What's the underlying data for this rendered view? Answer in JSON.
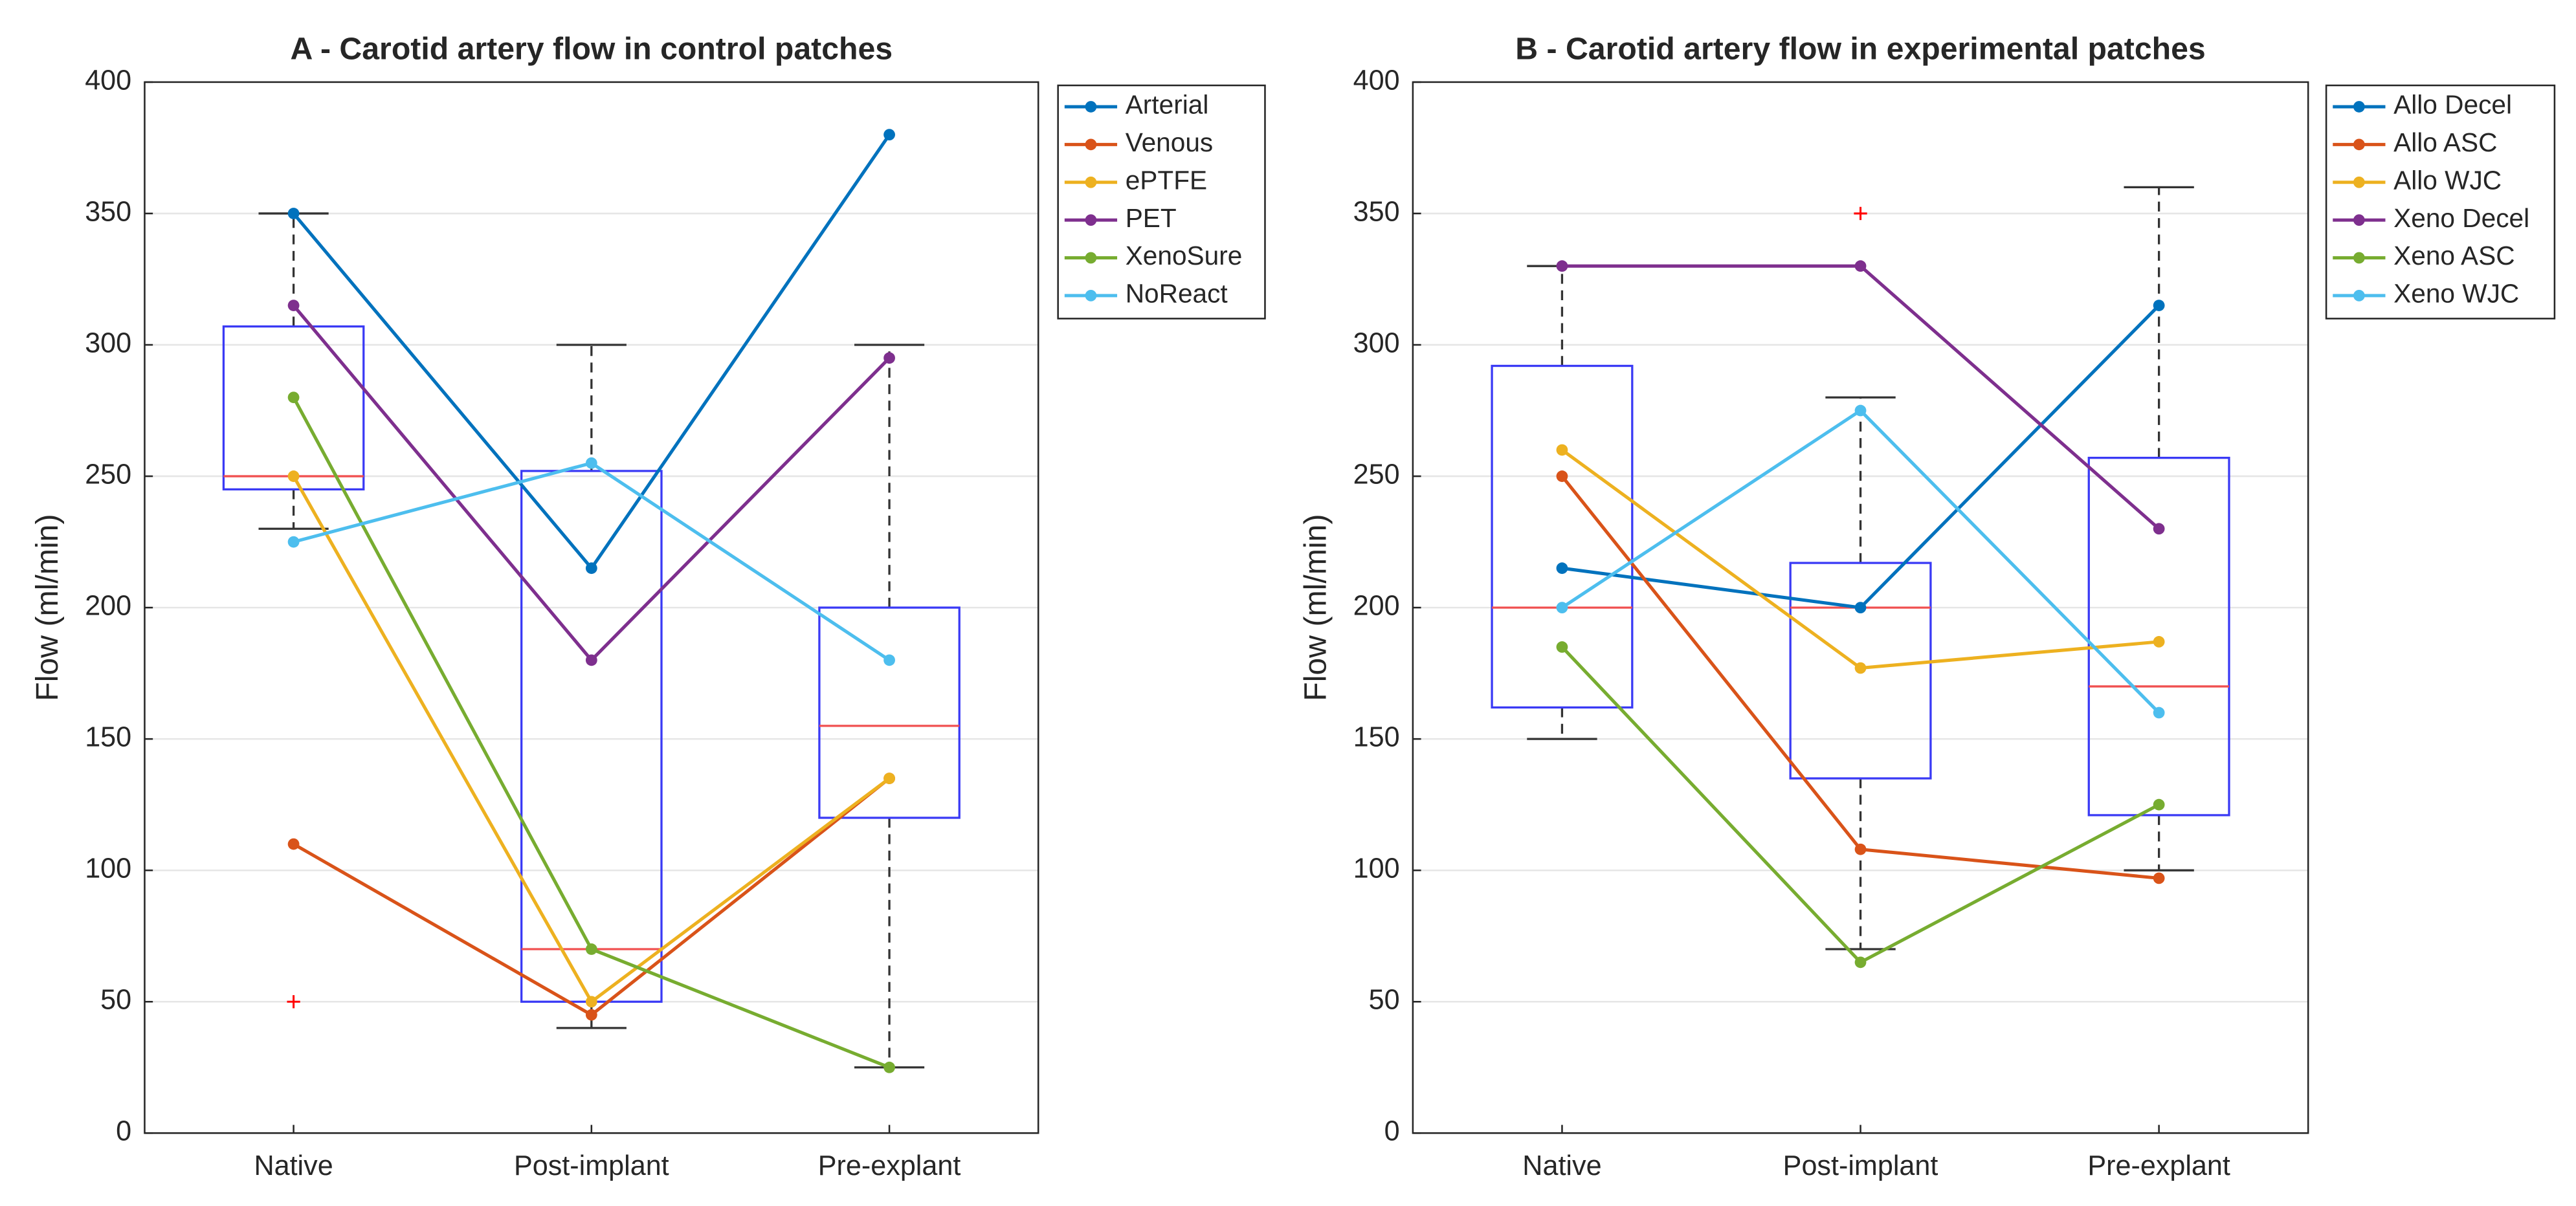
{
  "chart_data": [
    {
      "type": "box",
      "title": "A - Carotid artery flow in control patches",
      "y_label": "Flow (ml/min)",
      "categories": [
        "Native",
        "Post-implant",
        "Pre-explant"
      ],
      "ylim": [
        0,
        400
      ],
      "yticks": [
        0,
        50,
        100,
        150,
        200,
        250,
        300,
        350,
        400
      ],
      "grid": true,
      "legend": "outside right",
      "box_color": "#3a3af5",
      "median_color": "#f05050",
      "outlier_color": "#ff0000",
      "boxes": [
        {
          "whisker_low": 230,
          "q1": 245,
          "median": 250,
          "q3": 307,
          "whisker_high": 350,
          "outliers": [
            50
          ]
        },
        {
          "whisker_low": 40,
          "q1": 50,
          "median": 70,
          "q3": 252,
          "whisker_high": 300
        },
        {
          "whisker_low": 25,
          "q1": 120,
          "median": 155,
          "q3": 200,
          "whisker_high": 300
        }
      ],
      "series": [
        {
          "name": "Arterial",
          "color": "#0072BD",
          "values": [
            350,
            215,
            380
          ]
        },
        {
          "name": "Venous",
          "color": "#D95319",
          "values": [
            110,
            45,
            135
          ]
        },
        {
          "name": "ePTFE",
          "color": "#EDB120",
          "values": [
            250,
            50,
            135
          ]
        },
        {
          "name": "PET",
          "color": "#7E2F8E",
          "values": [
            315,
            180,
            295
          ]
        },
        {
          "name": "XenoSure",
          "color": "#77AC30",
          "values": [
            280,
            70,
            25
          ]
        },
        {
          "name": "NoReact",
          "color": "#4DBEEE",
          "values": [
            225,
            255,
            180
          ]
        }
      ]
    },
    {
      "type": "box",
      "title": "B - Carotid artery flow in experimental patches",
      "y_label": "Flow (ml/min)",
      "categories": [
        "Native",
        "Post-implant",
        "Pre-explant"
      ],
      "ylim": [
        0,
        400
      ],
      "yticks": [
        0,
        50,
        100,
        150,
        200,
        250,
        300,
        350,
        400
      ],
      "grid": true,
      "legend": "outside right",
      "box_color": "#3a3af5",
      "median_color": "#f05050",
      "outlier_color": "#ff0000",
      "boxes": [
        {
          "whisker_low": 150,
          "q1": 162,
          "median": 200,
          "q3": 292,
          "whisker_high": 330
        },
        {
          "whisker_low": 70,
          "q1": 135,
          "median": 200,
          "q3": 217,
          "whisker_high": 280,
          "outliers": [
            350
          ]
        },
        {
          "whisker_low": 100,
          "q1": 121,
          "median": 170,
          "q3": 257,
          "whisker_high": 360
        }
      ],
      "series": [
        {
          "name": "Allo Decel",
          "color": "#0072BD",
          "values": [
            215,
            200,
            315
          ]
        },
        {
          "name": "Allo ASC",
          "color": "#D95319",
          "values": [
            250,
            108,
            97
          ]
        },
        {
          "name": "Allo WJC",
          "color": "#EDB120",
          "values": [
            260,
            177,
            187
          ]
        },
        {
          "name": "Xeno Decel",
          "color": "#7E2F8E",
          "values": [
            330,
            330,
            230
          ]
        },
        {
          "name": "Xeno ASC",
          "color": "#77AC30",
          "values": [
            185,
            65,
            125
          ]
        },
        {
          "name": "Xeno WJC",
          "color": "#4DBEEE",
          "values": [
            200,
            275,
            160
          ]
        }
      ]
    }
  ]
}
